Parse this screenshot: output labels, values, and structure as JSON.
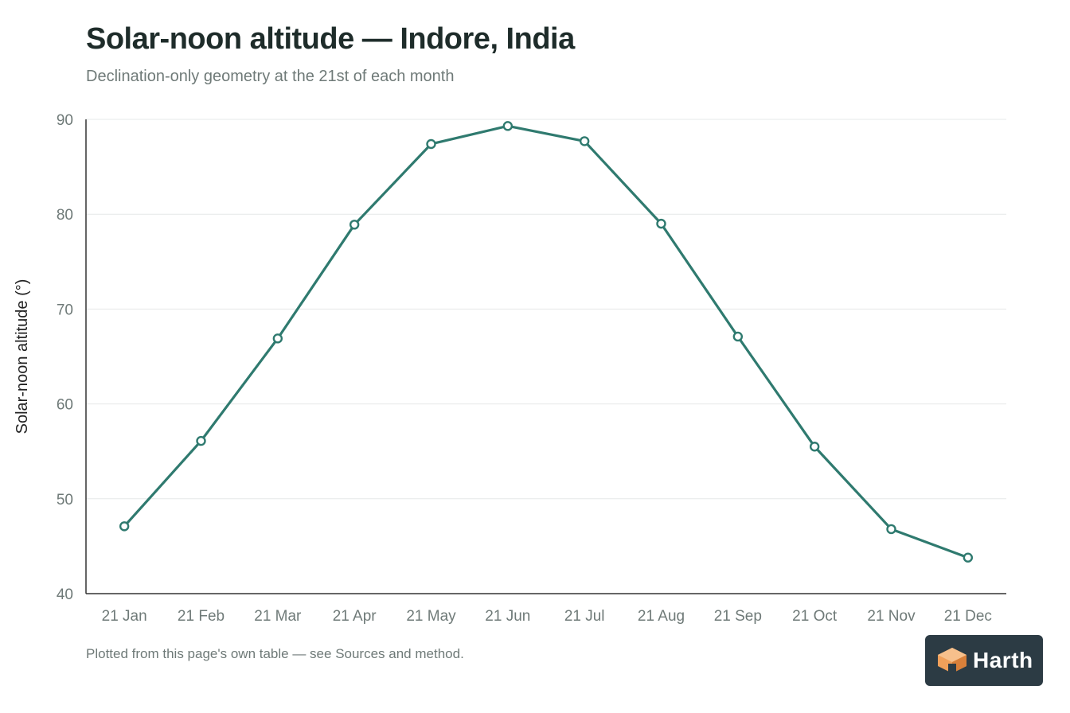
{
  "header": {
    "title": "Solar-noon altitude — Indore, India",
    "subtitle": "Declination-only geometry at the 21st of each month"
  },
  "footnote": "Plotted from this page's own table — see Sources and method.",
  "brand": {
    "name": "Harth",
    "icon": "harth-logo-icon"
  },
  "colors": {
    "line": "#2f7a6f",
    "marker_fill": "#ffffff",
    "grid": "#e6e8e8",
    "axis": "#333333",
    "tick_text": "#6f7a78",
    "logo_bg": "#2c3b44",
    "logo_accent": "#f0a05a"
  },
  "chart_data": {
    "type": "line",
    "title": "Solar-noon altitude — Indore, India",
    "subtitle": "Declination-only geometry at the 21st of each month",
    "xlabel": "",
    "ylabel": "Solar-noon altitude (°)",
    "categories": [
      "21 Jan",
      "21 Feb",
      "21 Mar",
      "21 Apr",
      "21 May",
      "21 Jun",
      "21 Jul",
      "21 Aug",
      "21 Sep",
      "21 Oct",
      "21 Nov",
      "21 Dec"
    ],
    "series": [
      {
        "values": [
          47.1,
          56.1,
          66.9,
          78.9,
          87.4,
          89.3,
          87.7,
          79.0,
          67.1,
          55.5,
          46.8,
          43.8
        ]
      }
    ],
    "ylim": [
      40,
      90
    ],
    "yticks": [
      40,
      50,
      60,
      70,
      80,
      90
    ],
    "grid": true,
    "markers": "open-circle",
    "legend": "none"
  }
}
